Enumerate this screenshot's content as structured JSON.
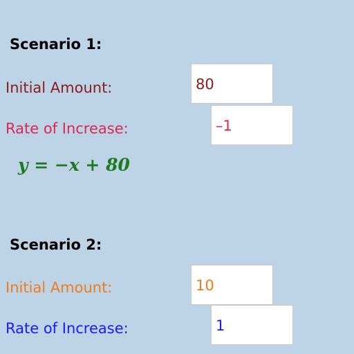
{
  "scenario1": {
    "heading": "Scenario 1:",
    "initial_label": "Initial Amount:",
    "initial_value": "80",
    "rate_label": "Rate of Increase:",
    "rate_value": "–1",
    "equation": "y = −x + 80"
  },
  "scenario2": {
    "heading": "Scenario 2:",
    "initial_label": "Initial Amount:",
    "initial_value": "10",
    "rate_label": "Rate of Increase:",
    "rate_value": "1"
  }
}
